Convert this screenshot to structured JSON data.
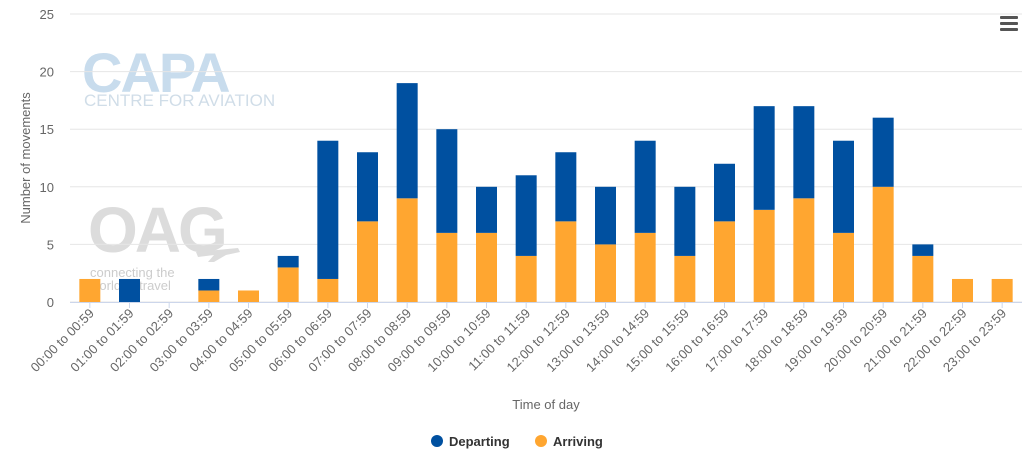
{
  "watermarks": {
    "capa_logo": "CAPA",
    "capa_subtitle": "CENTRE FOR AVIATION",
    "oag_logo": "OAG",
    "oag_tagline_1": "connecting the",
    "oag_tagline_2": "world of travel"
  },
  "menu_icon": "hamburger-menu-icon",
  "colors": {
    "departing": "#0050a0",
    "arriving": "#ffa630",
    "grid": "#e6e6e6",
    "axis_text": "#666666"
  },
  "chart_data": {
    "type": "bar",
    "stacked": true,
    "xlabel": "Time of day",
    "ylabel": "Number of movements",
    "ylim": [
      0,
      25
    ],
    "yticks": [
      0,
      5,
      10,
      15,
      20,
      25
    ],
    "grid": true,
    "legend_position": "bottom-center",
    "categories": [
      "00:00 to 00:59",
      "01:00 to 01:59",
      "02:00 to 02:59",
      "03:00 to 03:59",
      "04:00 to 04:59",
      "05:00 to 05:59",
      "06:00 to 06:59",
      "07:00 to 07:59",
      "08:00 to 08:59",
      "09:00 to 09:59",
      "10:00 to 10:59",
      "11:00 to 11:59",
      "12:00 to 12:59",
      "13:00 to 13:59",
      "14:00 to 14:59",
      "15:00 to 15:59",
      "16:00 to 16:59",
      "17:00 to 17:59",
      "18:00 to 18:59",
      "19:00 to 19:59",
      "20:00 to 20:59",
      "21:00 to 21:59",
      "22:00 to 22:59",
      "23:00 to 23:59"
    ],
    "series": [
      {
        "name": "Departing",
        "values": [
          0,
          2,
          0,
          1,
          0,
          1,
          12,
          6,
          10,
          9,
          4,
          7,
          6,
          5,
          8,
          6,
          5,
          9,
          8,
          8,
          6,
          1,
          0,
          0
        ]
      },
      {
        "name": "Arriving",
        "values": [
          2,
          0,
          0,
          1,
          1,
          3,
          2,
          7,
          9,
          6,
          6,
          4,
          7,
          5,
          6,
          4,
          7,
          8,
          9,
          6,
          10,
          4,
          2,
          2
        ]
      }
    ]
  }
}
